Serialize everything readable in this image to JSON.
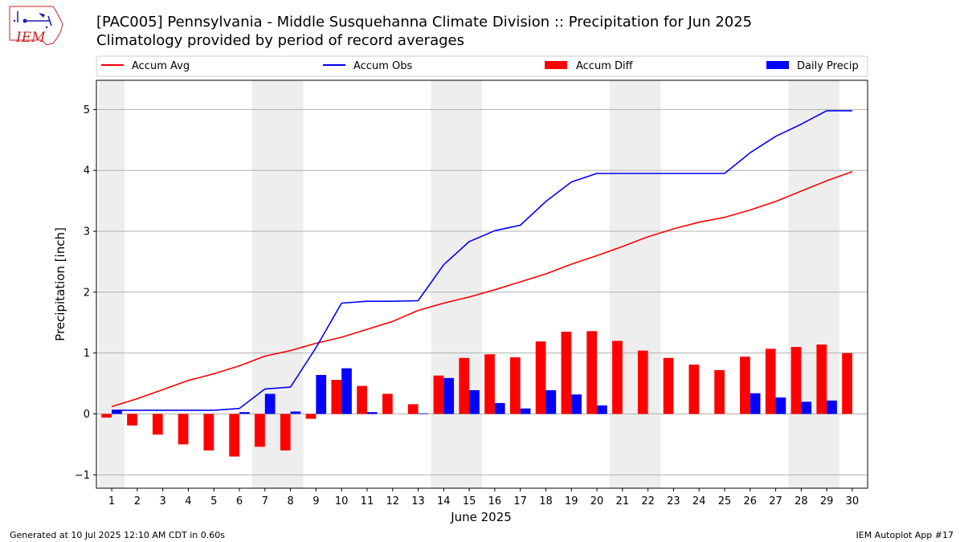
{
  "header": {
    "title": "[PAC005] Pennsylvania - Middle Susquehanna Climate Division :: Precipitation for Jun 2025",
    "subtitle": "Climatology provided by period of record averages",
    "logo_text": "IEM"
  },
  "footer": {
    "generated": "Generated at 10 Jul 2025 12:10 AM CDT in 0.60s",
    "app": "IEM Autoplot App #17"
  },
  "colors": {
    "avg": "#ff0000",
    "obs": "#0000ff",
    "diff": "#ff0000",
    "daily": "#0000ff",
    "weekend_band": "#eeeeee",
    "grid": "#b0b0b0"
  },
  "chart_data": {
    "type": "bar",
    "xlabel": "June 2025",
    "ylabel": "Precipitation [inch]",
    "ylim": [
      -1.22,
      5.48
    ],
    "yticks": [
      -1,
      0,
      1,
      2,
      3,
      4,
      5
    ],
    "grid": "horizontal",
    "legend_placement": "top",
    "categories": [
      "1",
      "2",
      "3",
      "4",
      "5",
      "6",
      "7",
      "8",
      "9",
      "10",
      "11",
      "12",
      "13",
      "14",
      "15",
      "16",
      "17",
      "18",
      "19",
      "20",
      "21",
      "22",
      "23",
      "24",
      "25",
      "26",
      "27",
      "28",
      "29",
      "30"
    ],
    "shaded_days": [
      [
        1,
        1
      ],
      [
        7,
        8
      ],
      [
        14,
        15
      ],
      [
        21,
        22
      ],
      [
        28,
        29
      ]
    ],
    "series": [
      {
        "name": "Accum Avg",
        "kind": "line",
        "values": [
          0.12,
          0.25,
          0.4,
          0.55,
          0.66,
          0.79,
          0.95,
          1.04,
          1.16,
          1.26,
          1.39,
          1.52,
          1.7,
          1.82,
          1.92,
          2.04,
          2.17,
          2.3,
          2.46,
          2.6,
          2.75,
          2.91,
          3.04,
          3.15,
          3.23,
          3.35,
          3.49,
          3.66,
          3.83,
          3.98
        ]
      },
      {
        "name": "Accum Obs",
        "kind": "line",
        "values": [
          0.06,
          0.06,
          0.06,
          0.06,
          0.06,
          0.09,
          0.41,
          0.44,
          1.09,
          1.82,
          1.85,
          1.85,
          1.86,
          2.45,
          2.83,
          3.01,
          3.1,
          3.49,
          3.81,
          3.95,
          3.95,
          3.95,
          3.95,
          3.95,
          3.95,
          4.29,
          4.56,
          4.76,
          4.98,
          4.98
        ]
      },
      {
        "name": "Accum Diff",
        "kind": "bar",
        "values": [
          -0.06,
          -0.19,
          -0.34,
          -0.5,
          -0.6,
          -0.7,
          -0.54,
          -0.6,
          -0.08,
          0.56,
          0.46,
          0.33,
          0.16,
          0.63,
          0.92,
          0.98,
          0.93,
          1.19,
          1.35,
          1.36,
          1.2,
          1.04,
          0.92,
          0.81,
          0.72,
          0.94,
          1.07,
          1.1,
          1.14,
          1.0
        ]
      },
      {
        "name": "Daily Precip",
        "kind": "bar",
        "values": [
          0.06,
          0.0,
          0.0,
          0.0,
          0.0,
          0.03,
          0.33,
          0.04,
          0.64,
          0.75,
          0.03,
          0.0,
          0.01,
          0.59,
          0.39,
          0.18,
          0.09,
          0.39,
          0.32,
          0.14,
          0.0,
          0.0,
          0.0,
          0.0,
          0.0,
          0.34,
          0.27,
          0.2,
          0.22,
          0.0
        ]
      }
    ]
  }
}
